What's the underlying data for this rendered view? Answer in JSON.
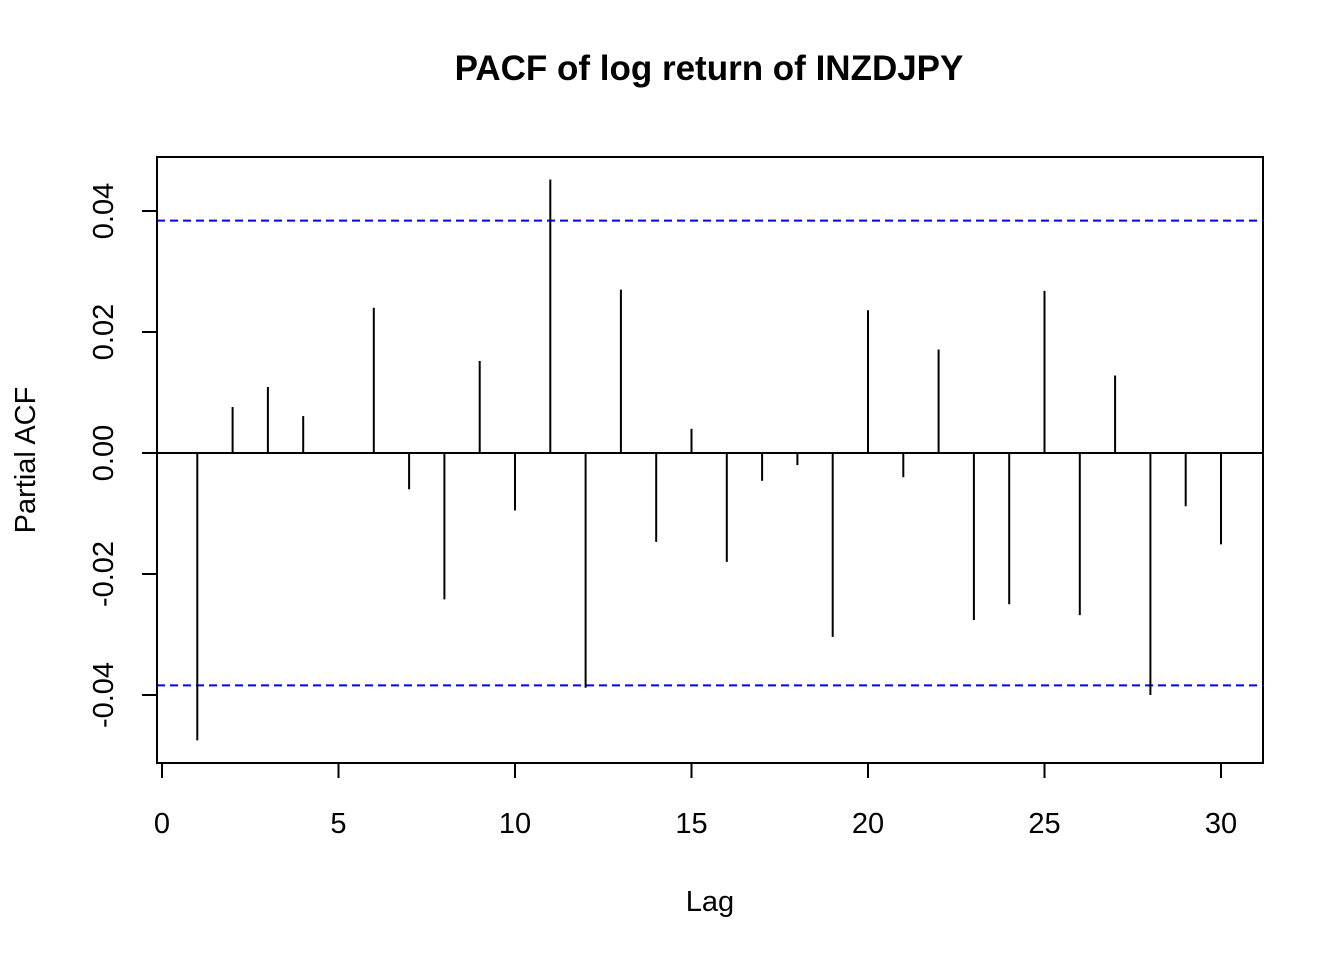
{
  "chart_data": {
    "type": "bar",
    "title": "PACF of log return of INZDJPY",
    "xlabel": "Lag",
    "ylabel": "Partial ACF",
    "xlim": [
      0,
      30
    ],
    "ylim": [
      -0.048,
      0.048
    ],
    "xticks": [
      "0",
      "5",
      "10",
      "15",
      "20",
      "25",
      "30"
    ],
    "yticks": [
      "-0.04",
      "-0.02",
      "0.00",
      "0.02",
      "0.04"
    ],
    "lags": [
      1,
      2,
      3,
      4,
      5,
      6,
      7,
      8,
      9,
      10,
      11,
      12,
      13,
      14,
      15,
      16,
      17,
      18,
      19,
      20,
      21,
      22,
      23,
      24,
      25,
      26,
      27,
      28,
      29,
      30
    ],
    "values": [
      -0.0475,
      0.0076,
      0.0109,
      0.0061,
      0.0,
      0.024,
      -0.006,
      -0.0242,
      0.0152,
      -0.0095,
      0.0452,
      -0.0388,
      0.027,
      -0.0147,
      0.004,
      -0.018,
      -0.0046,
      -0.002,
      -0.0304,
      0.0236,
      -0.004,
      0.0171,
      -0.0276,
      -0.025,
      0.0268,
      -0.0268,
      0.0128,
      -0.04,
      -0.0088,
      -0.0151
    ],
    "confidence_bound": 0.0384,
    "bar_color": "#000000",
    "bound_color": "#0000ff",
    "grid": false
  }
}
